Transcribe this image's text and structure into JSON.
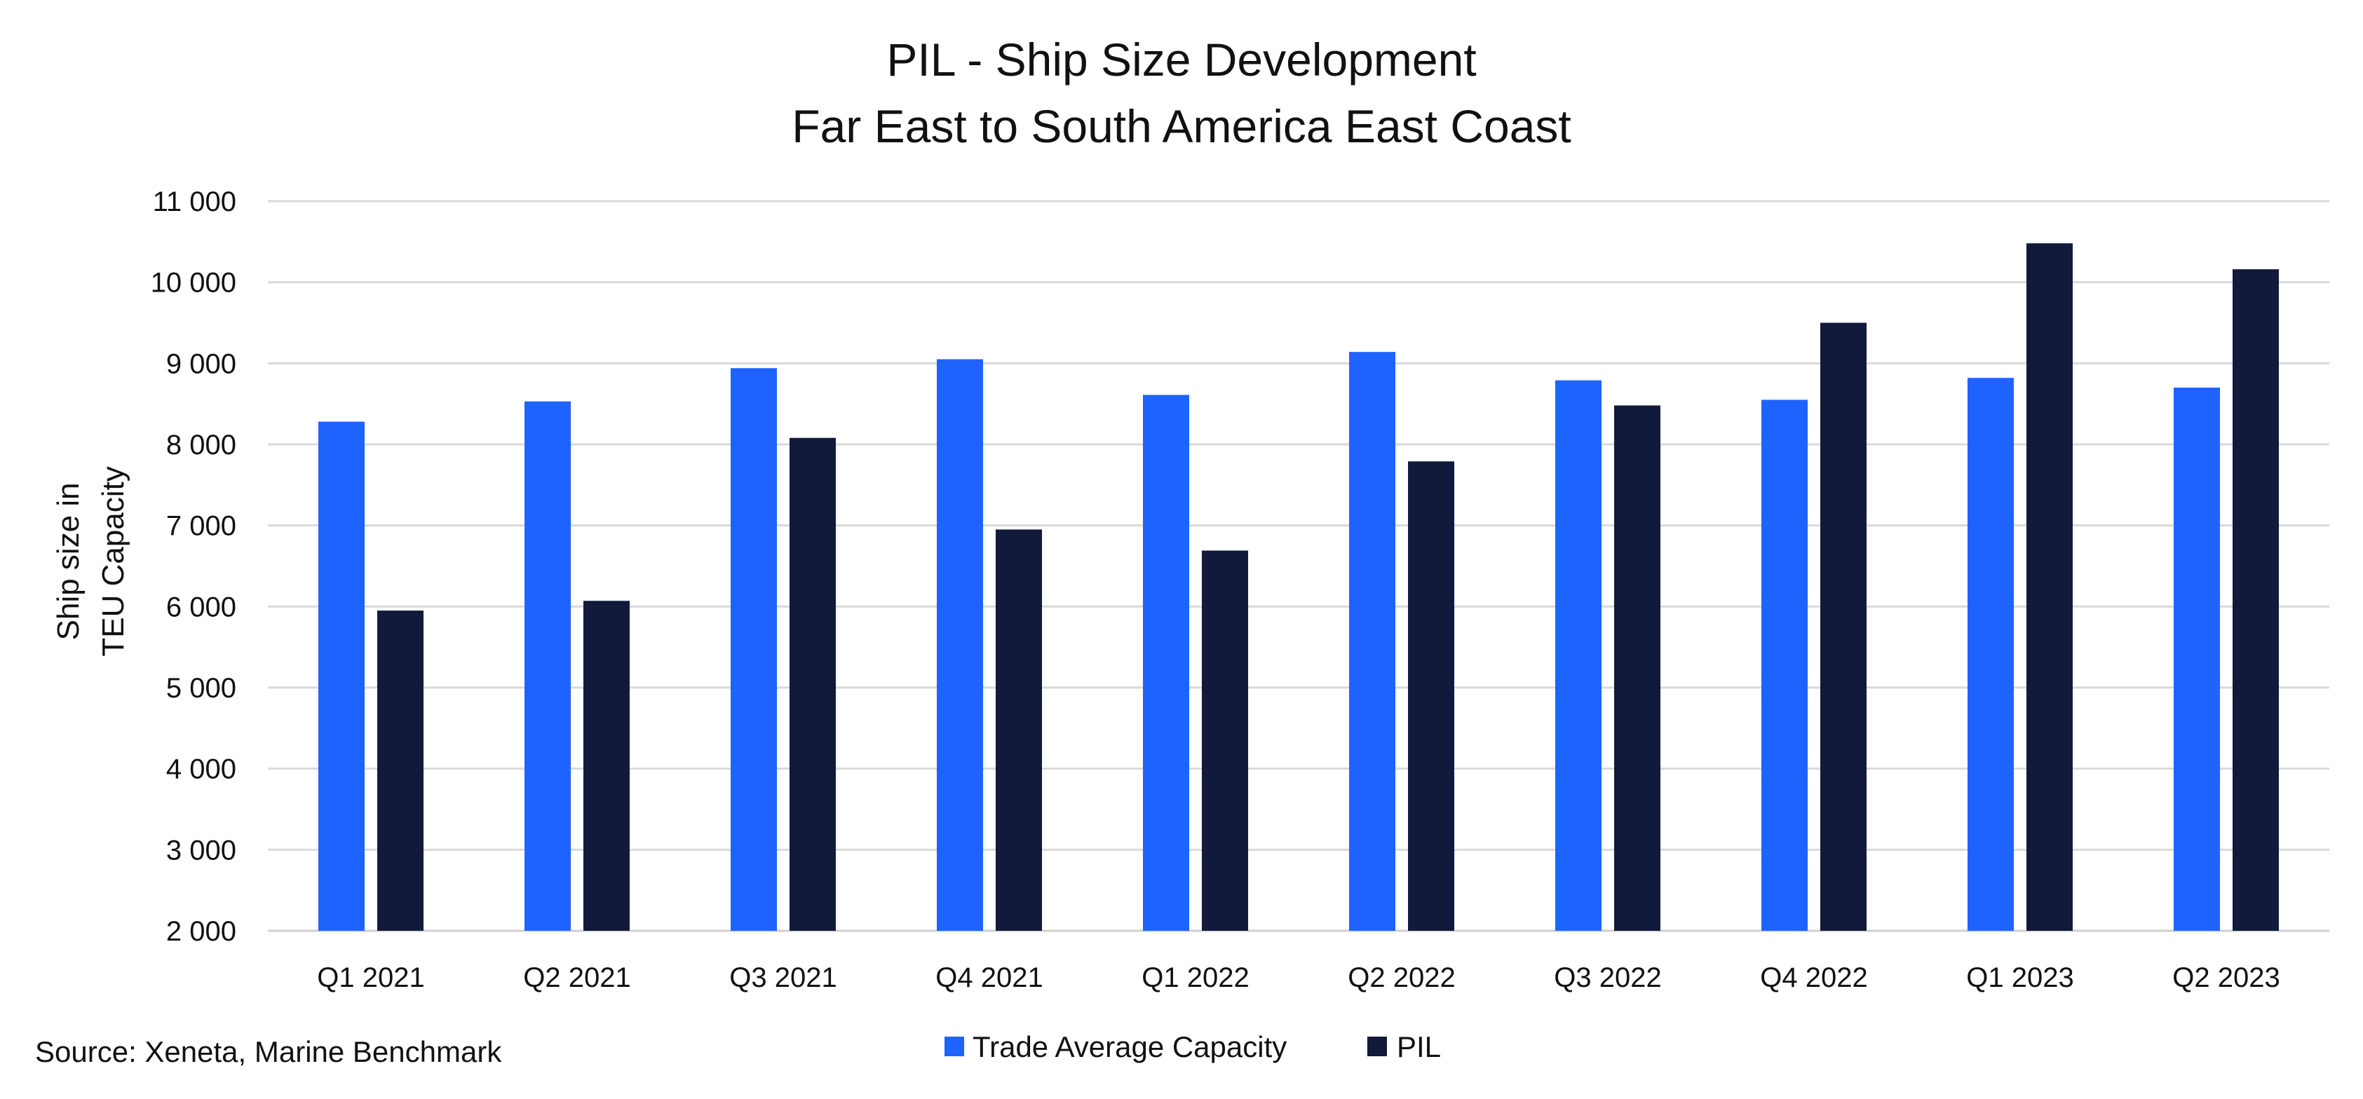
{
  "chart_data": {
    "type": "bar",
    "title": "PIL - Ship Size Development",
    "subtitle": "Far East to South America East Coast",
    "xlabel": "",
    "ylabel_lines": [
      "Ship size in",
      "TEU Capacity"
    ],
    "ylim": [
      2000,
      11000
    ],
    "yticks": [
      2000,
      3000,
      4000,
      5000,
      6000,
      7000,
      8000,
      9000,
      10000,
      11000
    ],
    "ytick_labels": [
      "2 000",
      "3 000",
      "4 000",
      "5 000",
      "6 000",
      "7 000",
      "8 000",
      "9 000",
      "10 000",
      "11 000"
    ],
    "grid": true,
    "legend_position": "bottom-center",
    "categories": [
      "Q1 2021",
      "Q2 2021",
      "Q3 2021",
      "Q4 2021",
      "Q1 2022",
      "Q2 2022",
      "Q3 2022",
      "Q4 2022",
      "Q1 2023",
      "Q2 2023"
    ],
    "series": [
      {
        "name": "Trade Average Capacity",
        "color": "#1f63ff",
        "values": [
          8280,
          8530,
          8940,
          9050,
          8610,
          9140,
          8790,
          8550,
          8820,
          8700
        ]
      },
      {
        "name": "PIL",
        "color": "#121a3b",
        "values": [
          5950,
          6070,
          8080,
          6950,
          6690,
          7790,
          8480,
          9500,
          10480,
          10160
        ]
      }
    ],
    "source": "Source: Xeneta, Marine Benchmark"
  }
}
